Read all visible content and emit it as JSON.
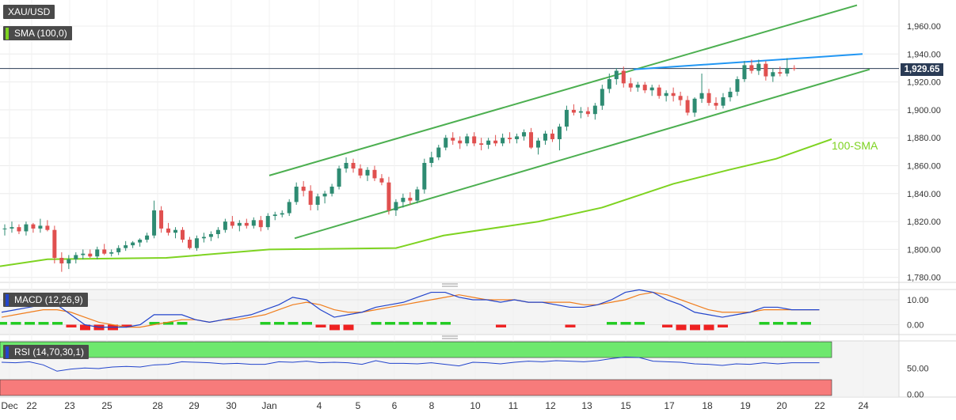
{
  "panels": {
    "price_label": "XAU/USD",
    "sma_label": "SMA (100,0)",
    "macd_label": "MACD (12,26,9)",
    "rsi_label": "RSI (14,70,30,1)",
    "sma_annotation": "100-SMA",
    "last_price_label": "1,929.65"
  },
  "colors": {
    "up": "#2e8b72",
    "down": "#e0504f",
    "channel": "#4caf50",
    "resistance": "#2196f3",
    "sma": "#7ed321",
    "macd_line": "#2244cc",
    "signal_line": "#f07d1c",
    "hist_up": "#22cc22",
    "hist_down": "#ee2222",
    "rsi_line": "#2244cc",
    "rsi_overbought": "#6ee86e",
    "rsi_oversold": "#f77b7b"
  },
  "chart_data": [
    {
      "type": "candlestick",
      "title": "XAU/USD",
      "x_labels": [
        "Dec",
        "22",
        "23",
        "25",
        "28",
        "29",
        "30",
        "Jan",
        "4",
        "5",
        "6",
        "8",
        "10",
        "11",
        "12",
        "13",
        "15",
        "17",
        "18",
        "19",
        "20",
        "22",
        "24"
      ],
      "y_ticks": [
        "1,960.00",
        "1,940.00",
        "1,920.00",
        "1,900.00",
        "1,880.00",
        "1,860.00",
        "1,840.00",
        "1,820.00",
        "1,800.00",
        "1,780.00"
      ],
      "ylim": [
        1775,
        1978
      ],
      "last_price": 1929.65,
      "candles": [
        [
          1815,
          1818,
          1810,
          1815
        ],
        [
          1815,
          1820,
          1812,
          1816
        ],
        [
          1816,
          1818,
          1811,
          1813
        ],
        [
          1813,
          1820,
          1810,
          1818
        ],
        [
          1818,
          1819,
          1812,
          1815
        ],
        [
          1815,
          1822,
          1812,
          1817
        ],
        [
          1817,
          1821,
          1813,
          1814
        ],
        [
          1814,
          1817,
          1790,
          1794
        ],
        [
          1794,
          1798,
          1784,
          1790
        ],
        [
          1790,
          1796,
          1786,
          1793
        ],
        [
          1793,
          1798,
          1790,
          1796
        ],
        [
          1796,
          1800,
          1793,
          1797
        ],
        [
          1797,
          1800,
          1794,
          1795
        ],
        [
          1795,
          1802,
          1793,
          1800
        ],
        [
          1800,
          1804,
          1796,
          1797
        ],
        [
          1797,
          1800,
          1795,
          1798
        ],
        [
          1798,
          1803,
          1796,
          1801
        ],
        [
          1801,
          1806,
          1799,
          1803
        ],
        [
          1803,
          1806,
          1801,
          1805
        ],
        [
          1805,
          1808,
          1802,
          1807
        ],
        [
          1807,
          1812,
          1805,
          1810
        ],
        [
          1810,
          1835,
          1808,
          1828
        ],
        [
          1828,
          1831,
          1812,
          1815
        ],
        [
          1815,
          1819,
          1810,
          1812
        ],
        [
          1812,
          1816,
          1808,
          1814
        ],
        [
          1814,
          1816,
          1805,
          1807
        ],
        [
          1807,
          1809,
          1800,
          1801
        ],
        [
          1801,
          1810,
          1799,
          1808
        ],
        [
          1808,
          1812,
          1805,
          1809
        ],
        [
          1809,
          1813,
          1806,
          1811
        ],
        [
          1811,
          1816,
          1808,
          1814
        ],
        [
          1814,
          1822,
          1812,
          1820
        ],
        [
          1820,
          1824,
          1815,
          1817
        ],
        [
          1817,
          1821,
          1813,
          1819
        ],
        [
          1819,
          1822,
          1815,
          1817
        ],
        [
          1817,
          1823,
          1815,
          1821
        ],
        [
          1821,
          1824,
          1813,
          1816
        ],
        [
          1816,
          1826,
          1814,
          1824
        ],
        [
          1824,
          1827,
          1821,
          1825
        ],
        [
          1825,
          1828,
          1823,
          1826
        ],
        [
          1826,
          1836,
          1824,
          1834
        ],
        [
          1834,
          1848,
          1832,
          1845
        ],
        [
          1845,
          1849,
          1838,
          1842
        ],
        [
          1842,
          1846,
          1828,
          1832
        ],
        [
          1832,
          1840,
          1828,
          1838
        ],
        [
          1838,
          1842,
          1833,
          1840
        ],
        [
          1840,
          1847,
          1838,
          1845
        ],
        [
          1845,
          1860,
          1843,
          1858
        ],
        [
          1858,
          1866,
          1855,
          1862
        ],
        [
          1862,
          1865,
          1855,
          1858
        ],
        [
          1858,
          1861,
          1851,
          1853
        ],
        [
          1853,
          1859,
          1849,
          1857
        ],
        [
          1857,
          1860,
          1849,
          1851
        ],
        [
          1851,
          1854,
          1846,
          1848
        ],
        [
          1848,
          1852,
          1825,
          1828
        ],
        [
          1828,
          1836,
          1824,
          1834
        ],
        [
          1834,
          1840,
          1830,
          1837
        ],
        [
          1837,
          1841,
          1832,
          1835
        ],
        [
          1835,
          1845,
          1833,
          1843
        ],
        [
          1843,
          1865,
          1840,
          1862
        ],
        [
          1862,
          1870,
          1859,
          1866
        ],
        [
          1866,
          1875,
          1864,
          1873
        ],
        [
          1873,
          1882,
          1871,
          1880
        ],
        [
          1880,
          1884,
          1875,
          1878
        ],
        [
          1878,
          1881,
          1872,
          1876
        ],
        [
          1876,
          1883,
          1874,
          1881
        ],
        [
          1881,
          1884,
          1874,
          1876
        ],
        [
          1876,
          1880,
          1871,
          1875
        ],
        [
          1875,
          1880,
          1872,
          1878
        ],
        [
          1878,
          1882,
          1874,
          1876
        ],
        [
          1876,
          1883,
          1874,
          1880
        ],
        [
          1880,
          1884,
          1876,
          1879
        ],
        [
          1879,
          1883,
          1876,
          1881
        ],
        [
          1881,
          1886,
          1878,
          1884
        ],
        [
          1884,
          1887,
          1872,
          1873
        ],
        [
          1873,
          1880,
          1868,
          1878
        ],
        [
          1878,
          1885,
          1875,
          1883
        ],
        [
          1883,
          1886,
          1877,
          1879
        ],
        [
          1879,
          1890,
          1871,
          1888
        ],
        [
          1888,
          1903,
          1885,
          1900
        ],
        [
          1900,
          1904,
          1896,
          1898
        ],
        [
          1898,
          1902,
          1894,
          1899
        ],
        [
          1899,
          1902,
          1895,
          1897
        ],
        [
          1897,
          1905,
          1893,
          1903
        ],
        [
          1903,
          1918,
          1900,
          1915
        ],
        [
          1915,
          1926,
          1912,
          1922
        ],
        [
          1922,
          1930,
          1918,
          1928
        ],
        [
          1928,
          1931,
          1916,
          1919
        ],
        [
          1919,
          1923,
          1913,
          1916
        ],
        [
          1916,
          1920,
          1913,
          1918
        ],
        [
          1918,
          1920,
          1912,
          1914
        ],
        [
          1914,
          1918,
          1910,
          1916
        ],
        [
          1916,
          1918,
          1908,
          1910
        ],
        [
          1910,
          1914,
          1906,
          1912
        ],
        [
          1912,
          1916,
          1906,
          1910
        ],
        [
          1910,
          1913,
          1903,
          1907
        ],
        [
          1907,
          1910,
          1896,
          1898
        ],
        [
          1898,
          1909,
          1895,
          1908
        ],
        [
          1908,
          1926,
          1905,
          1912
        ],
        [
          1912,
          1915,
          1903,
          1905
        ],
        [
          1905,
          1909,
          1900,
          1903
        ],
        [
          1903,
          1912,
          1901,
          1909
        ],
        [
          1909,
          1916,
          1906,
          1913
        ],
        [
          1913,
          1924,
          1910,
          1922
        ],
        [
          1922,
          1935,
          1920,
          1932
        ],
        [
          1932,
          1936,
          1926,
          1928
        ],
        [
          1928,
          1936,
          1925,
          1933
        ],
        [
          1933,
          1935,
          1921,
          1924
        ],
        [
          1924,
          1930,
          1920,
          1927
        ],
        [
          1927,
          1931,
          1924,
          1926
        ],
        [
          1926,
          1937,
          1924,
          1930
        ],
        [
          1930,
          1932,
          1928,
          1929.65
        ]
      ],
      "sma": [
        1788,
        1793,
        1794,
        1800,
        1801,
        1810,
        1820,
        1830,
        1847,
        1857,
        1865,
        1879
      ],
      "channel_upper": [
        1853,
        1975
      ],
      "channel_lower": [
        1808,
        1929
      ],
      "resistance": [
        1929,
        1940
      ],
      "annotations": [
        "100-SMA"
      ]
    },
    {
      "type": "macd",
      "title": "MACD (12,26,9)",
      "y_ticks": [
        "10.00",
        "0.00"
      ],
      "ylim": [
        -4,
        14.5
      ],
      "macd": [
        5,
        6,
        7,
        8,
        8,
        4,
        0,
        -1,
        -1,
        -1,
        0,
        4,
        4,
        4,
        2,
        1,
        2,
        3,
        4,
        6,
        8,
        11,
        10,
        6,
        3,
        4,
        5,
        7,
        8,
        9,
        11,
        13,
        13,
        11,
        10,
        10,
        9,
        10,
        9,
        9,
        8,
        7,
        7,
        8,
        10,
        13,
        14,
        13,
        10,
        8,
        5,
        4,
        3,
        4,
        5,
        7,
        7,
        6,
        6,
        6
      ],
      "signal": [
        3,
        4,
        5,
        6,
        6,
        5,
        3,
        1,
        0,
        -1,
        -1,
        0,
        1,
        2,
        2,
        1,
        2,
        2,
        3,
        4,
        6,
        8,
        9,
        8,
        6,
        5,
        5,
        6,
        7,
        8,
        9,
        10,
        11,
        12,
        11,
        10,
        10,
        10,
        9,
        9,
        9,
        9,
        8,
        8,
        9,
        10,
        12,
        13,
        12,
        10,
        8,
        6,
        5,
        5,
        5,
        6,
        6,
        6,
        6,
        6
      ],
      "histogram": [
        1,
        1,
        1,
        1,
        1,
        -1,
        -2,
        -2,
        -2,
        -1,
        0,
        1,
        1,
        1,
        0,
        0,
        0,
        0,
        0,
        1,
        1,
        1,
        1,
        -1,
        -2,
        -2,
        0,
        1,
        1,
        1,
        1,
        1,
        1,
        0,
        0,
        0,
        -1,
        0,
        0,
        0,
        0,
        -1,
        0,
        0,
        1,
        1,
        1,
        0,
        -1,
        -2,
        -2,
        -2,
        -1,
        0,
        0,
        1,
        1,
        1,
        1,
        0
      ]
    },
    {
      "type": "rsi",
      "title": "RSI (14,70,30,1)",
      "y_ticks": [
        "50.00",
        "0.00"
      ],
      "ylim": [
        -2,
        100
      ],
      "overbought": 70,
      "oversold": 30,
      "values": [
        61,
        60,
        62,
        56,
        44,
        48,
        50,
        49,
        52,
        53,
        52,
        56,
        57,
        62,
        61,
        60,
        58,
        59,
        57,
        57,
        62,
        61,
        63,
        60,
        61,
        60,
        57,
        64,
        59,
        59,
        58,
        60,
        57,
        54,
        61,
        60,
        58,
        61,
        63,
        62,
        64,
        63,
        62,
        64,
        68,
        71,
        70,
        63,
        62,
        61,
        58,
        57,
        55,
        58,
        57,
        60,
        58,
        60,
        60,
        60
      ]
    }
  ]
}
